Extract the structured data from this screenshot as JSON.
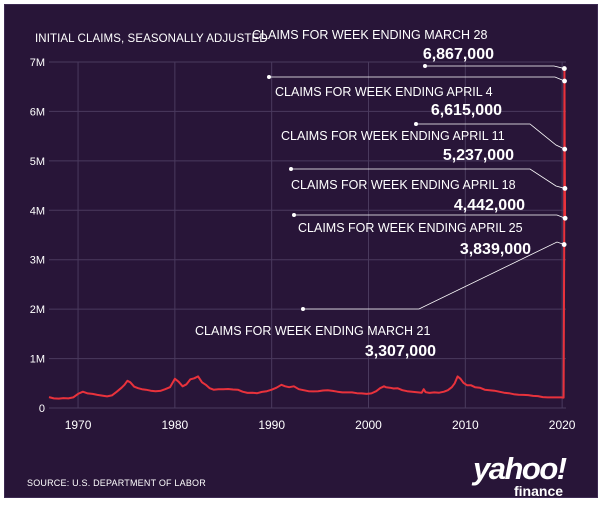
{
  "chart_data": {
    "type": "line",
    "title": "",
    "ylabel": "INITIAL CLAIMS, SEASONALLY ADJUSTED",
    "xlabel": "",
    "xlim": [
      1967,
      2020.4
    ],
    "ylim": [
      0,
      7000000
    ],
    "x_ticks": [
      1970,
      1980,
      1990,
      2000,
      2010,
      2020
    ],
    "x_tick_labels": [
      "1970",
      "1980",
      "1990",
      "2000",
      "2010",
      "2020"
    ],
    "y_ticks": [
      0,
      1000000,
      2000000,
      3000000,
      4000000,
      5000000,
      6000000,
      7000000
    ],
    "y_tick_labels": [
      "0",
      "1M",
      "2M",
      "3M",
      "4M",
      "5M",
      "6M",
      "7M"
    ],
    "grid": true,
    "line_color": "#e8323c",
    "series": [
      {
        "x": [
          1967.0,
          1967.5,
          1968.0,
          1968.5,
          1969.0,
          1969.5,
          1970.0,
          1970.5,
          1971.0,
          1971.5,
          1972.0,
          1972.5,
          1973.0,
          1973.5,
          1974.0,
          1974.5,
          1974.8,
          1975.1,
          1975.4,
          1975.8,
          1976.2,
          1976.6,
          1977.0,
          1977.5,
          1978.0,
          1978.5,
          1979.0,
          1979.5,
          1980.0,
          1980.4,
          1980.8,
          1981.2,
          1981.6,
          1982.0,
          1982.4,
          1982.8,
          1983.2,
          1983.6,
          1984.0,
          1984.5,
          1985.0,
          1985.5,
          1986.0,
          1986.5,
          1987.0,
          1987.5,
          1988.0,
          1988.5,
          1989.0,
          1989.5,
          1990.0,
          1990.5,
          1991.0,
          1991.4,
          1991.8,
          1992.3,
          1992.8,
          1993.3,
          1993.8,
          1994.3,
          1994.8,
          1995.3,
          1995.8,
          1996.3,
          1996.8,
          1997.3,
          1997.8,
          1998.3,
          1998.8,
          1999.3,
          1999.8,
          2000.3,
          2000.8,
          2001.2,
          2001.6,
          2001.8,
          2002.2,
          2002.6,
          2003.0,
          2003.5,
          2004.0,
          2004.5,
          2005.0,
          2005.5,
          2005.7,
          2005.9,
          2006.3,
          2006.8,
          2007.3,
          2007.8,
          2008.2,
          2008.6,
          2008.9,
          2009.2,
          2009.5,
          2009.8,
          2010.2,
          2010.6,
          2011.0,
          2011.5,
          2012.0,
          2012.5,
          2013.0,
          2013.5,
          2014.0,
          2014.5,
          2015.0,
          2015.5,
          2016.0,
          2016.5,
          2017.0,
          2017.5,
          2018.0,
          2018.5,
          2019.0,
          2019.5,
          2019.9,
          2020.15,
          2020.21,
          2020.23,
          2020.25,
          2020.27,
          2020.29,
          2020.31
        ],
        "y": [
          220000,
          195000,
          190000,
          200000,
          195000,
          215000,
          285000,
          330000,
          295000,
          285000,
          265000,
          250000,
          235000,
          255000,
          330000,
          410000,
          470000,
          550000,
          520000,
          430000,
          400000,
          380000,
          370000,
          350000,
          340000,
          345000,
          380000,
          420000,
          590000,
          530000,
          440000,
          480000,
          580000,
          600000,
          640000,
          520000,
          470000,
          400000,
          370000,
          380000,
          380000,
          385000,
          375000,
          370000,
          330000,
          305000,
          310000,
          300000,
          325000,
          340000,
          370000,
          410000,
          470000,
          440000,
          420000,
          440000,
          380000,
          360000,
          340000,
          335000,
          340000,
          355000,
          360000,
          345000,
          330000,
          315000,
          315000,
          315000,
          300000,
          295000,
          285000,
          295000,
          340000,
          400000,
          440000,
          420000,
          410000,
          395000,
          400000,
          360000,
          340000,
          330000,
          320000,
          310000,
          380000,
          320000,
          305000,
          315000,
          310000,
          330000,
          360000,
          420000,
          500000,
          640000,
          590000,
          510000,
          460000,
          460000,
          420000,
          410000,
          370000,
          360000,
          350000,
          330000,
          310000,
          300000,
          280000,
          270000,
          265000,
          260000,
          245000,
          240000,
          220000,
          215000,
          215000,
          215000,
          215000,
          211000,
          3307000,
          6867000,
          6615000,
          5237000,
          4442000,
          3839000
        ]
      }
    ],
    "annotations": [
      {
        "label": "CLAIMS FOR WEEK ENDING MARCH 28",
        "value": "6,867,000",
        "point_x": 2020.23,
        "point_y": 6867000
      },
      {
        "label": "CLAIMS FOR WEEK ENDING APRIL 4",
        "value": "6,615,000",
        "point_x": 2020.25,
        "point_y": 6615000
      },
      {
        "label": "CLAIMS FOR WEEK ENDING APRIL 11",
        "value": "5,237,000",
        "point_x": 2020.27,
        "point_y": 5237000
      },
      {
        "label": "CLAIMS FOR WEEK ENDING APRIL 18",
        "value": "4,442,000",
        "point_x": 2020.29,
        "point_y": 4442000
      },
      {
        "label": "CLAIMS FOR WEEK ENDING APRIL 25",
        "value": "3,839,000",
        "point_x": 2020.31,
        "point_y": 3839000
      },
      {
        "label": "CLAIMS FOR WEEK ENDING MARCH 21",
        "value": "3,307,000",
        "point_x": 2020.21,
        "point_y": 3307000
      }
    ]
  },
  "source": "SOURCE:  U.S. DEPARTMENT OF LABOR",
  "logo": {
    "line1": "yahoo!",
    "line2": "finance"
  },
  "colors": {
    "background": "#281538",
    "line": "#e8323c",
    "text": "#ffffff",
    "grid": "#4a3a5e"
  }
}
